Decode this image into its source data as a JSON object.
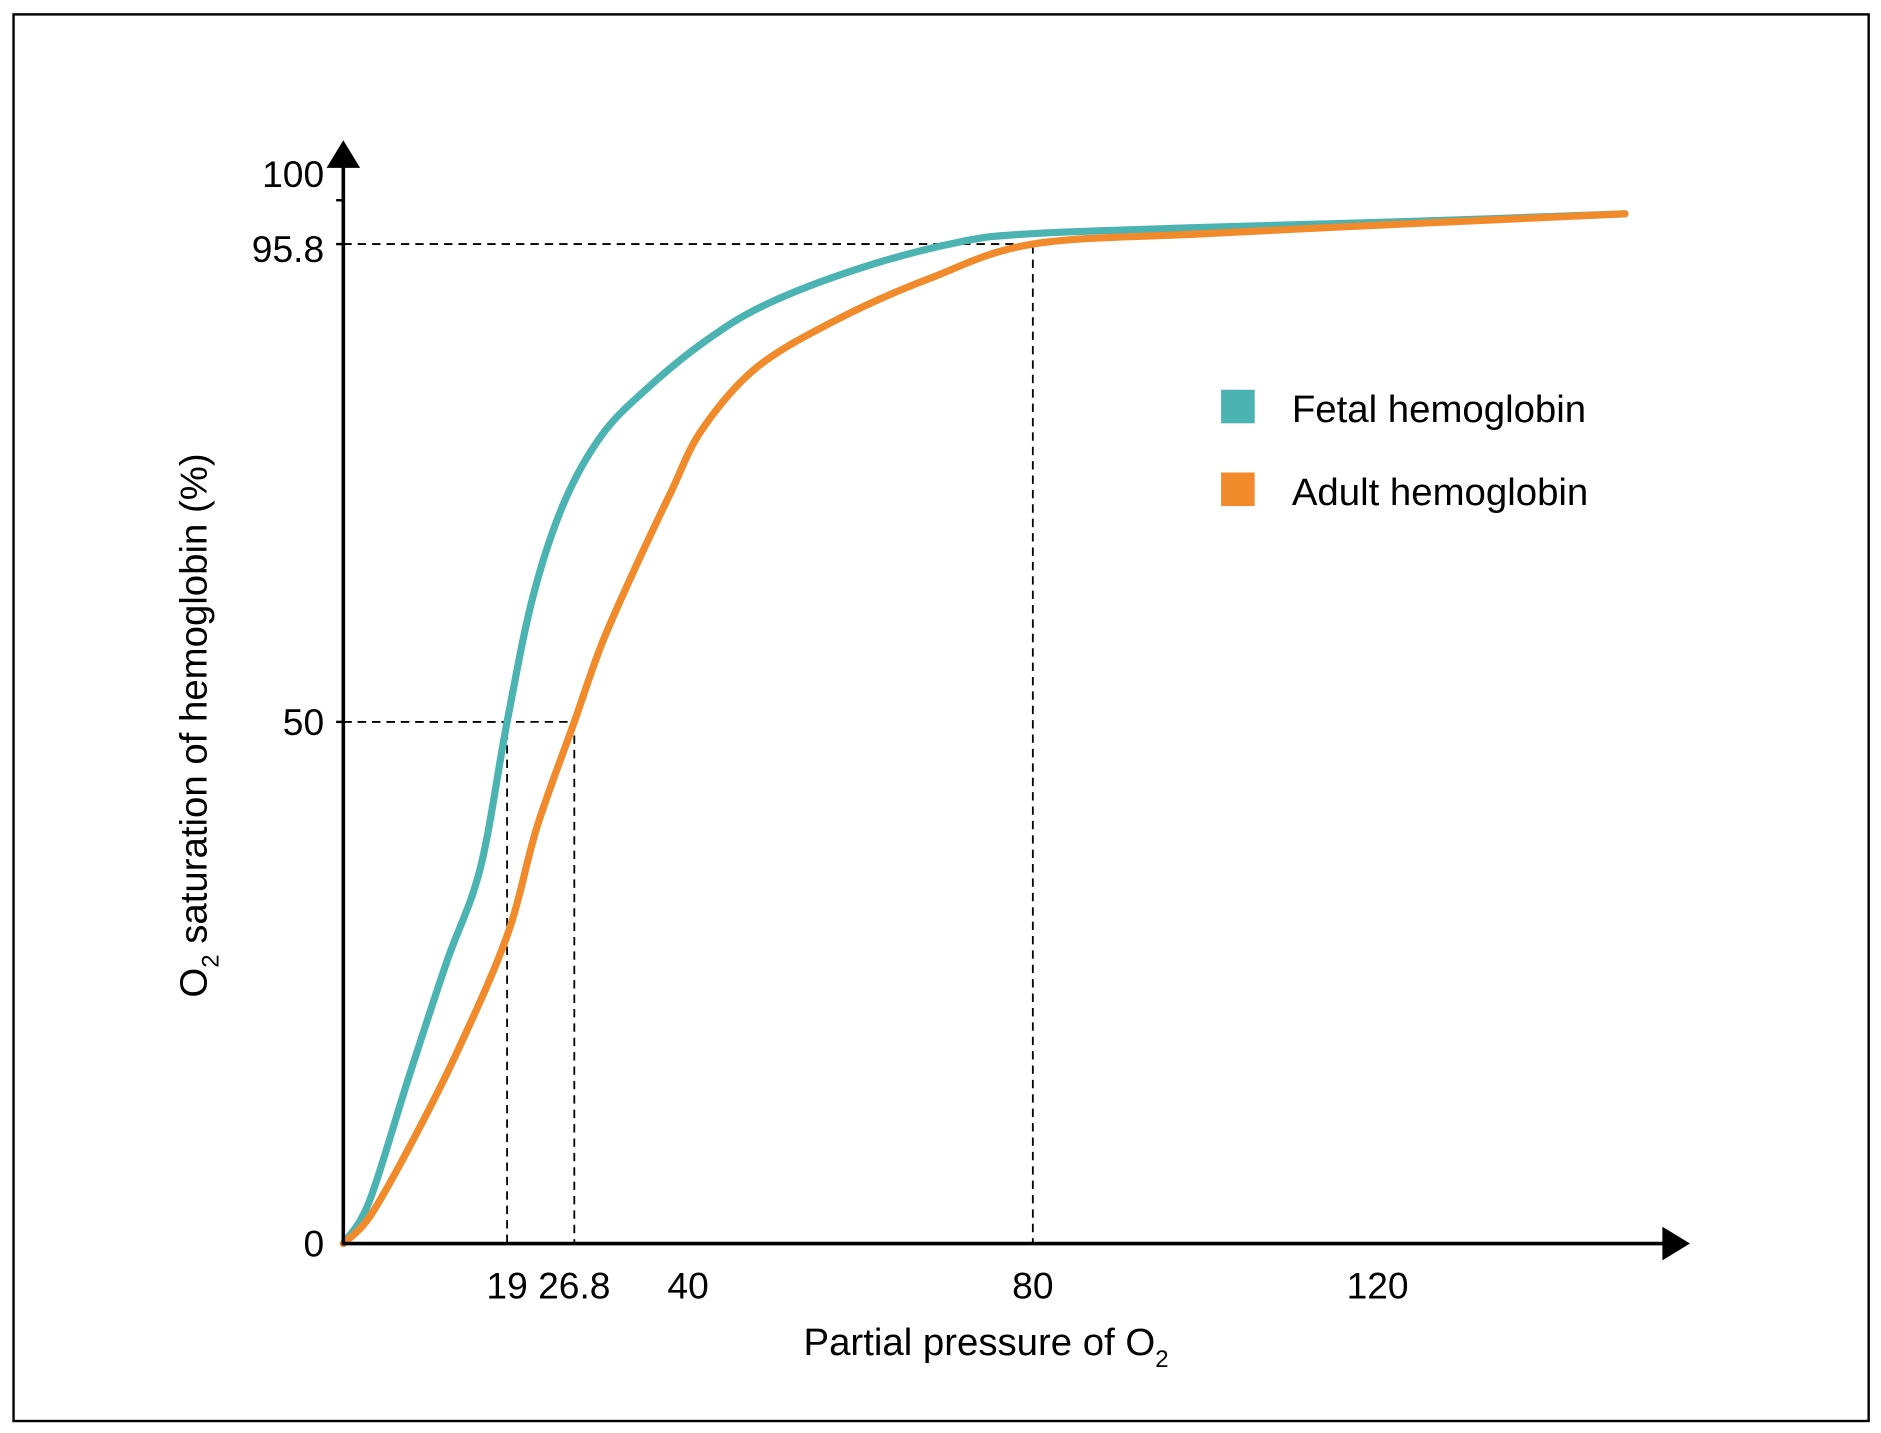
{
  "chart_data": {
    "type": "line",
    "title": "",
    "xlabel": "Partial pressure of O",
    "xlabel_sub": "2",
    "ylabel_pre": "O",
    "ylabel_sub": "2",
    "ylabel": " saturation of hemoglobin (%)",
    "xlim": [
      0,
      155
    ],
    "ylim": [
      0,
      100
    ],
    "grid": false,
    "legend_position": "right",
    "x_ticks": [
      {
        "value": 19,
        "label": "19"
      },
      {
        "value": 26.8,
        "label": "26.8"
      },
      {
        "value": 40,
        "label": "40"
      },
      {
        "value": 80,
        "label": "80"
      },
      {
        "value": 120,
        "label": "120"
      }
    ],
    "y_ticks": [
      {
        "value": 0,
        "label": "0"
      },
      {
        "value": 50,
        "label": "50"
      },
      {
        "value": 95.8,
        "label": "95.8"
      },
      {
        "value": 100,
        "label": "100"
      }
    ],
    "reference_lines": [
      {
        "x": 19,
        "y": 50
      },
      {
        "x": 26.8,
        "y": 50
      },
      {
        "x": 80,
        "y": 95.8
      }
    ],
    "series": [
      {
        "name": "Fetal hemoglobin",
        "color": "#4BB3B2",
        "x": [
          0,
          3,
          7.5,
          12,
          15.9,
          19,
          22,
          25.6,
          30,
          35.3,
          42,
          49,
          60,
          71.5,
          80,
          100,
          125,
          148.7
        ],
        "y": [
          0,
          4,
          15.7,
          27,
          36,
          50,
          62,
          71,
          77.5,
          82,
          86.5,
          90,
          93.5,
          96,
          96.8,
          97.4,
          98,
          98.7
        ]
      },
      {
        "name": "Adult hemoglobin",
        "color": "#F18A2A",
        "x": [
          0,
          3,
          7.5,
          13,
          19,
          22.5,
          26.8,
          30,
          34,
          38,
          41.6,
          48,
          57.6,
          68,
          80,
          100,
          125,
          148.7
        ],
        "y": [
          0,
          2.5,
          9,
          18,
          29.5,
          40,
          50,
          57.5,
          65,
          72,
          78,
          84,
          88.7,
          92.5,
          95.8,
          96.8,
          97.8,
          98.7
        ]
      }
    ]
  }
}
